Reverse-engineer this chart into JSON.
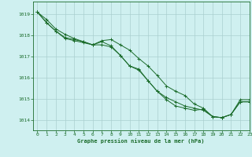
{
  "title": "Graphe pression niveau de la mer (hPa)",
  "background_color": "#cff0f0",
  "plot_background": "#cff0f0",
  "grid_color": "#aacfcf",
  "line_color": "#1a6b2a",
  "marker_color": "#1a6b2a",
  "xlim": [
    -0.5,
    23
  ],
  "ylim": [
    1013.5,
    1019.6
  ],
  "xticks": [
    0,
    1,
    2,
    3,
    4,
    5,
    6,
    7,
    8,
    9,
    10,
    11,
    12,
    13,
    14,
    15,
    16,
    17,
    18,
    19,
    20,
    21,
    22,
    23
  ],
  "yticks": [
    1014,
    1015,
    1016,
    1017,
    1018,
    1019
  ],
  "series": [
    {
      "x": [
        0,
        1,
        2,
        3,
        4,
        5,
        6,
        7,
        8,
        9,
        10,
        11,
        12,
        13,
        14,
        15,
        16,
        17,
        18,
        19,
        20,
        21,
        22,
        23
      ],
      "y": [
        1019.1,
        1018.75,
        1018.3,
        1018.05,
        1017.85,
        1017.7,
        1017.55,
        1017.75,
        1017.8,
        1017.55,
        1017.3,
        1016.9,
        1016.55,
        1016.1,
        1015.6,
        1015.35,
        1015.15,
        1014.75,
        1014.55,
        1014.15,
        1014.1,
        1014.25,
        1014.95,
        1014.95
      ]
    },
    {
      "x": [
        0,
        1,
        2,
        3,
        4,
        5,
        6,
        7,
        8,
        9,
        10,
        11,
        12,
        13,
        14,
        15,
        16,
        17,
        18,
        19,
        20,
        21,
        22,
        23
      ],
      "y": [
        1019.1,
        1018.6,
        1018.2,
        1017.85,
        1017.75,
        1017.65,
        1017.55,
        1017.55,
        1017.45,
        1017.05,
        1016.55,
        1016.35,
        1015.85,
        1015.35,
        1015.05,
        1014.85,
        1014.65,
        1014.55,
        1014.45,
        1014.15,
        1014.1,
        1014.25,
        1014.85,
        1014.85
      ]
    },
    {
      "x": [
        0,
        1,
        2,
        3,
        4,
        5,
        6,
        7,
        8,
        9,
        10,
        11,
        12,
        13,
        14,
        15,
        16,
        17,
        18,
        19,
        20,
        21,
        22,
        23
      ],
      "y": [
        1019.1,
        1018.6,
        1018.2,
        1017.9,
        1017.8,
        1017.7,
        1017.55,
        1017.7,
        1017.5,
        1017.05,
        1016.55,
        1016.4,
        1015.85,
        1015.35,
        1014.95,
        1014.65,
        1014.55,
        1014.45,
        1014.5,
        1014.15,
        1014.1,
        1014.25,
        1014.85,
        1014.85
      ]
    }
  ]
}
